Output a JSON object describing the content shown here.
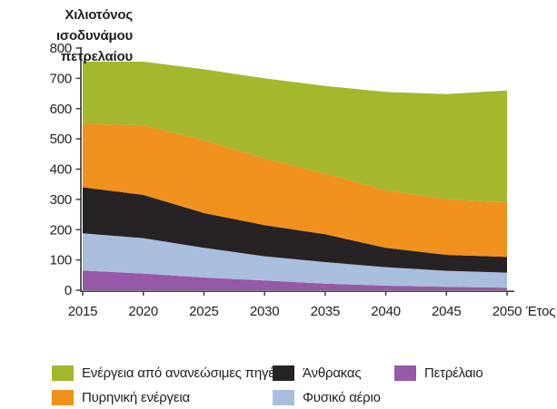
{
  "chart_data": {
    "type": "area",
    "stacked": true,
    "title": "",
    "y_axis_title": "Χιλιοτόνος ισοδυνάμου πετρελαίου",
    "y_axis_title_lines": [
      "Χιλιοτόνος ισοδυνάμου",
      "πετρελαίου"
    ],
    "x_axis_label": "Έτος",
    "x": [
      2015,
      2020,
      2025,
      2030,
      2035,
      2040,
      2045,
      2050
    ],
    "y_ticks": [
      0,
      100,
      200,
      300,
      400,
      500,
      600,
      700,
      800
    ],
    "ylim": [
      0,
      800
    ],
    "grid": false,
    "legend_position": "bottom",
    "series": [
      {
        "name": "Πετρέλαιο",
        "color": "#9659a7",
        "values": [
          65,
          55,
          42,
          32,
          22,
          15,
          11,
          8
        ]
      },
      {
        "name": "Φυσικό αέριο",
        "color": "#a9bedd",
        "values": [
          123,
          117,
          98,
          80,
          71,
          61,
          53,
          50
        ]
      },
      {
        "name": "Άνθρακας",
        "color": "#272223",
        "values": [
          152,
          143,
          115,
          103,
          92,
          64,
          53,
          52
        ]
      },
      {
        "name": "Πυρηνική ενέργεια",
        "color": "#f0911e",
        "values": [
          210,
          230,
          240,
          220,
          200,
          190,
          183,
          180
        ]
      },
      {
        "name": "Ενέργεια από ανανεώσιμες πηγές",
        "color": "#a5b72d",
        "values": [
          205,
          210,
          235,
          265,
          290,
          325,
          348,
          370
        ]
      }
    ],
    "totals": [
      755,
      755,
      730,
      700,
      675,
      655,
      648,
      660
    ],
    "axis_color": "#3f3f3f"
  }
}
